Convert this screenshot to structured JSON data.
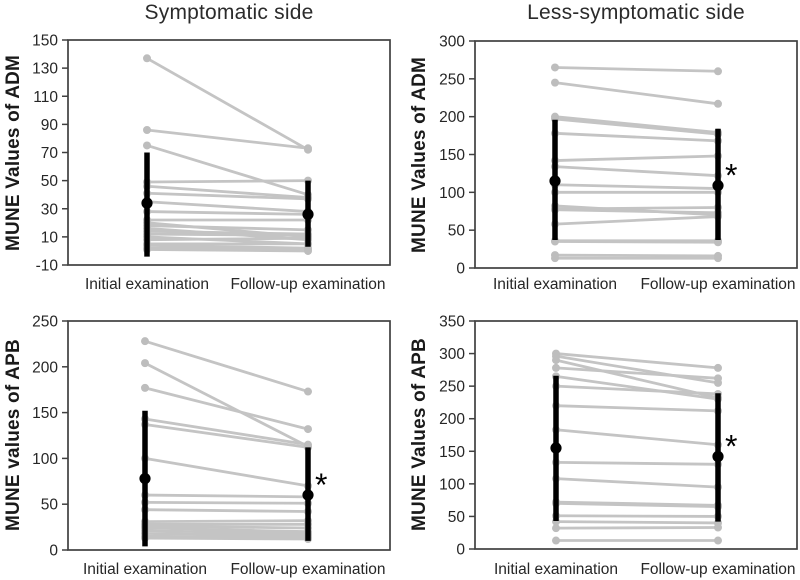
{
  "figure": {
    "column_titles": [
      "Symptomatic side",
      "Less-symptomatic side"
    ],
    "significance_symbol": "*"
  },
  "colors": {
    "background": "#ffffff",
    "series_line": "#c4c4c4",
    "series_dot": "#bdbdbd",
    "mean_marker": "#000000",
    "axis_border": "#404040",
    "tick_text": "#262626",
    "title_text": "#2b2b2b",
    "axis_label_text": "#1a1a1a"
  },
  "chart_data": [
    {
      "type": "line",
      "id": "adm-symptomatic",
      "column_title": "Symptomatic side",
      "ylabel": "MUNE Values of ADM",
      "categories": [
        "Initial examination",
        "Follow-up examination"
      ],
      "ylim": [
        -10,
        150
      ],
      "yticks": [
        150,
        130,
        110,
        90,
        70,
        50,
        30,
        10,
        -10
      ],
      "grid": false,
      "legend": "none",
      "series_pairs": [
        [
          137,
          72
        ],
        [
          86,
          73
        ],
        [
          75,
          40
        ],
        [
          49,
          50
        ],
        [
          46,
          38
        ],
        [
          41,
          37
        ],
        [
          35,
          28
        ],
        [
          28,
          26
        ],
        [
          22,
          22
        ],
        [
          20,
          10
        ],
        [
          18,
          15
        ],
        [
          16,
          8
        ],
        [
          14,
          12
        ],
        [
          12,
          11
        ],
        [
          10,
          5
        ],
        [
          8,
          9
        ],
        [
          5,
          5
        ],
        [
          4,
          2
        ],
        [
          2,
          1
        ],
        [
          1,
          0
        ]
      ],
      "mean": [
        34,
        26
      ],
      "error_low": [
        -4,
        3
      ],
      "error_high": [
        70,
        50
      ],
      "significant": false
    },
    {
      "type": "line",
      "id": "adm-less-symptomatic",
      "column_title": "Less-symptomatic side",
      "ylabel": "MUNE Values of ADM",
      "categories": [
        "Initial examination",
        "Follow-up examination"
      ],
      "ylim": [
        0,
        300
      ],
      "yticks": [
        300,
        250,
        200,
        150,
        100,
        50,
        0
      ],
      "grid": false,
      "legend": "none",
      "series_pairs": [
        [
          265,
          260
        ],
        [
          245,
          217
        ],
        [
          200,
          179
        ],
        [
          197,
          177
        ],
        [
          178,
          168
        ],
        [
          142,
          148
        ],
        [
          134,
          122
        ],
        [
          110,
          105
        ],
        [
          100,
          100
        ],
        [
          82,
          70
        ],
        [
          78,
          80
        ],
        [
          77,
          73
        ],
        [
          58,
          68
        ],
        [
          36,
          36
        ],
        [
          35,
          34
        ],
        [
          17,
          16
        ],
        [
          13,
          13
        ]
      ],
      "mean": [
        115,
        109
      ],
      "error_low": [
        37,
        37
      ],
      "error_high": [
        196,
        184
      ],
      "significant": true
    },
    {
      "type": "line",
      "id": "apb-symptomatic",
      "column_title": "Symptomatic side",
      "ylabel": "MUNE values of APB",
      "categories": [
        "Initial examination",
        "Follow-up examination"
      ],
      "ylim": [
        0,
        250
      ],
      "yticks": [
        250,
        200,
        150,
        100,
        50,
        0
      ],
      "grid": false,
      "legend": "none",
      "series_pairs": [
        [
          228,
          173
        ],
        [
          204,
          113
        ],
        [
          177,
          132
        ],
        [
          143,
          115
        ],
        [
          137,
          112
        ],
        [
          100,
          70
        ],
        [
          60,
          58
        ],
        [
          52,
          51
        ],
        [
          44,
          42
        ],
        [
          31,
          32
        ],
        [
          28,
          28
        ],
        [
          26,
          24
        ],
        [
          24,
          20
        ],
        [
          21,
          18
        ],
        [
          18,
          16
        ],
        [
          15,
          14
        ],
        [
          13,
          12
        ]
      ],
      "mean": [
        78,
        60
      ],
      "error_low": [
        4,
        10
      ],
      "error_high": [
        152,
        112
      ],
      "significant": true
    },
    {
      "type": "line",
      "id": "apb-less-symptomatic",
      "column_title": "Less-symptomatic side",
      "ylabel": "MUNE Values of APB",
      "categories": [
        "Initial examination",
        "Follow-up examination"
      ],
      "ylim": [
        0,
        350
      ],
      "yticks": [
        350,
        300,
        250,
        200,
        150,
        100,
        50,
        0
      ],
      "grid": false,
      "legend": "none",
      "series_pairs": [
        [
          300,
          278
        ],
        [
          296,
          255
        ],
        [
          290,
          232
        ],
        [
          278,
          262
        ],
        [
          265,
          230
        ],
        [
          250,
          238
        ],
        [
          220,
          212
        ],
        [
          183,
          160
        ],
        [
          133,
          130
        ],
        [
          108,
          95
        ],
        [
          72,
          67
        ],
        [
          70,
          65
        ],
        [
          51,
          50
        ],
        [
          42,
          40
        ],
        [
          32,
          33
        ],
        [
          13,
          13
        ]
      ],
      "mean": [
        155,
        142
      ],
      "error_low": [
        43,
        42
      ],
      "error_high": [
        266,
        239
      ],
      "significant": true
    }
  ]
}
